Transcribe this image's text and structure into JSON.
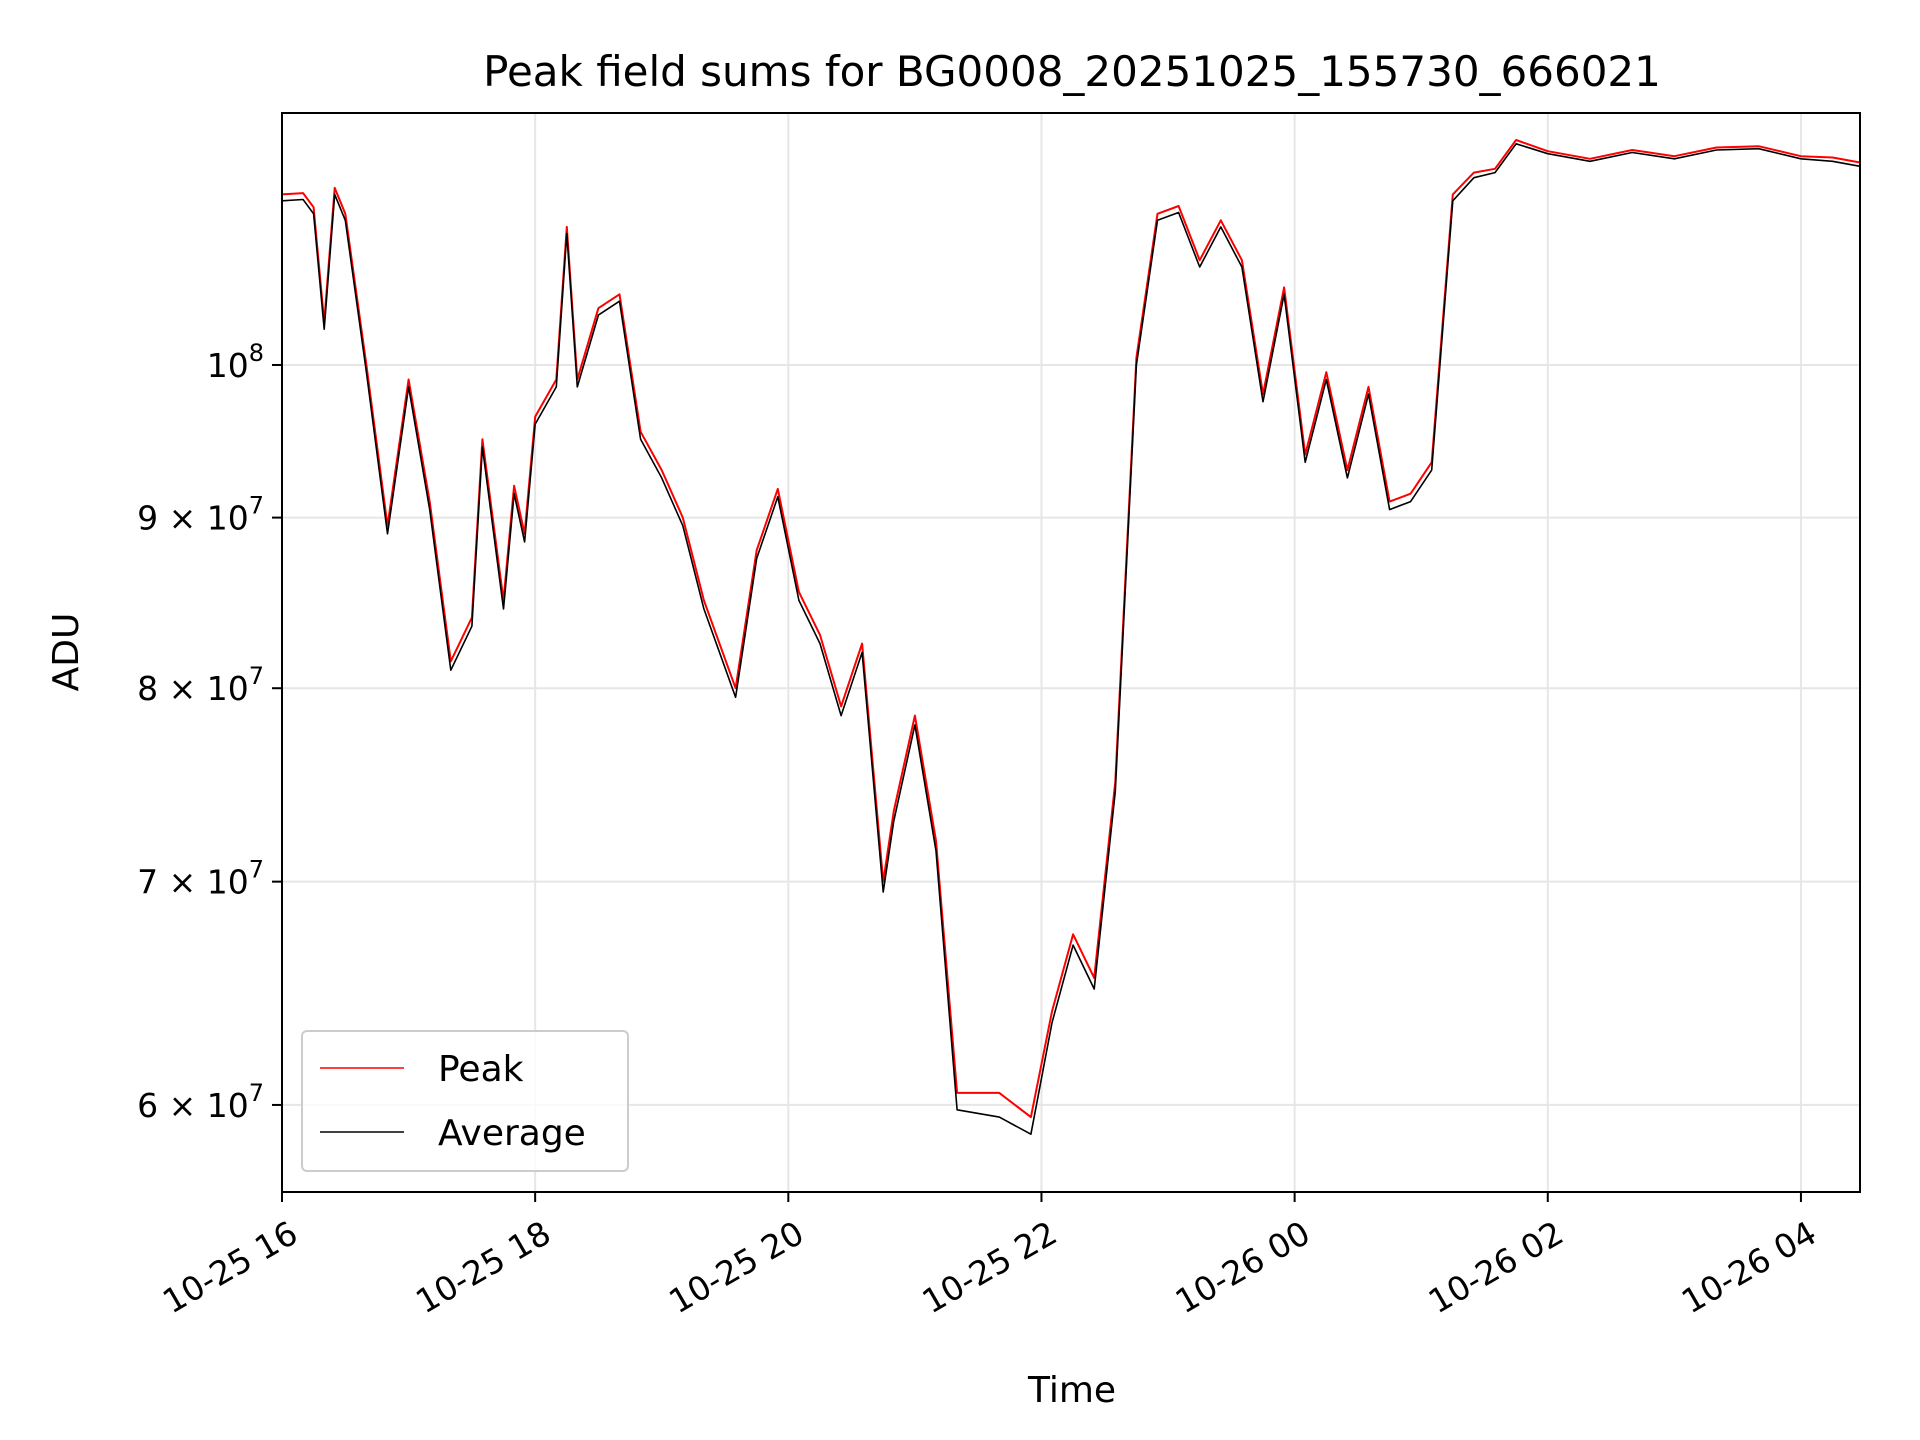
{
  "chart_data": {
    "type": "line",
    "title": "Peak field sums for BG0008_20251025_155730_666021",
    "xlabel": "Time",
    "ylabel": "ADU",
    "y_scale": "log",
    "grid": true,
    "legend_position": "lower-left",
    "xlim": [
      "2025-10-25 16:00",
      "2025-10-26 04:28"
    ],
    "ylim": [
      56500000,
      119000000
    ],
    "x_ticks": [
      {
        "value": "2025-10-25 16:00",
        "label": "10-25 16"
      },
      {
        "value": "2025-10-25 18:00",
        "label": "10-25 18"
      },
      {
        "value": "2025-10-25 20:00",
        "label": "10-25 20"
      },
      {
        "value": "2025-10-25 22:00",
        "label": "10-25 22"
      },
      {
        "value": "2025-10-26 00:00",
        "label": "10-26 00"
      },
      {
        "value": "2025-10-26 02:00",
        "label": "10-26 02"
      },
      {
        "value": "2025-10-26 04:00",
        "label": "10-26 04"
      }
    ],
    "y_ticks": [
      {
        "value": 100000000,
        "base": "10",
        "exp": "8"
      },
      {
        "value": 90000000,
        "base": "9 × 10",
        "exp": "7"
      },
      {
        "value": 80000000,
        "base": "8 × 10",
        "exp": "7"
      },
      {
        "value": 70000000,
        "base": "7 × 10",
        "exp": "7"
      },
      {
        "value": 60000000,
        "base": "6 × 10",
        "exp": "7"
      }
    ],
    "series": [
      {
        "name": "Peak",
        "color": "#ff0000",
        "x": [
          "2025-10-25 16:00",
          "2025-10-25 16:10",
          "2025-10-25 16:15",
          "2025-10-25 16:20",
          "2025-10-25 16:25",
          "2025-10-25 16:30",
          "2025-10-25 16:40",
          "2025-10-25 16:50",
          "2025-10-25 17:00",
          "2025-10-25 17:10",
          "2025-10-25 17:20",
          "2025-10-25 17:30",
          "2025-10-25 17:35",
          "2025-10-25 17:45",
          "2025-10-25 17:50",
          "2025-10-25 17:55",
          "2025-10-25 18:00",
          "2025-10-25 18:10",
          "2025-10-25 18:15",
          "2025-10-25 18:20",
          "2025-10-25 18:30",
          "2025-10-25 18:40",
          "2025-10-25 18:50",
          "2025-10-25 19:00",
          "2025-10-25 19:10",
          "2025-10-25 19:20",
          "2025-10-25 19:35",
          "2025-10-25 19:45",
          "2025-10-25 19:55",
          "2025-10-25 20:05",
          "2025-10-25 20:15",
          "2025-10-25 20:25",
          "2025-10-25 20:35",
          "2025-10-25 20:45",
          "2025-10-25 20:50",
          "2025-10-25 21:00",
          "2025-10-25 21:10",
          "2025-10-25 21:20",
          "2025-10-25 21:40",
          "2025-10-25 21:55",
          "2025-10-25 22:05",
          "2025-10-25 22:15",
          "2025-10-25 22:25",
          "2025-10-25 22:35",
          "2025-10-25 22:45",
          "2025-10-25 22:55",
          "2025-10-25 23:05",
          "2025-10-25 23:15",
          "2025-10-25 23:25",
          "2025-10-25 23:35",
          "2025-10-25 23:45",
          "2025-10-25 23:55",
          "2025-10-26 00:05",
          "2025-10-26 00:15",
          "2025-10-26 00:25",
          "2025-10-26 00:35",
          "2025-10-26 00:45",
          "2025-10-26 00:55",
          "2025-10-26 01:05",
          "2025-10-26 01:15",
          "2025-10-26 01:25",
          "2025-10-26 01:35",
          "2025-10-26 01:45",
          "2025-10-26 02:00",
          "2025-10-26 02:20",
          "2025-10-26 02:40",
          "2025-10-26 03:00",
          "2025-10-26 03:20",
          "2025-10-26 03:40",
          "2025-10-26 04:00",
          "2025-10-26 04:15",
          "2025-10-26 04:28"
        ],
        "values": [
          112500000,
          112600000,
          111500000,
          103000000,
          113000000,
          111000000,
          100000000,
          89500000,
          99000000,
          91000000,
          81500000,
          84000000,
          95000000,
          85000000,
          92000000,
          89000000,
          96500000,
          99000000,
          110000000,
          99000000,
          104000000,
          105000000,
          95500000,
          93000000,
          90000000,
          85000000,
          80000000,
          88000000,
          91800000,
          85500000,
          83000000,
          79000000,
          82500000,
          70000000,
          73500000,
          78500000,
          72000000,
          60500000,
          60500000,
          59500000,
          64000000,
          67500000,
          65500000,
          75000000,
          100500000,
          111000000,
          111600000,
          107500000,
          110500000,
          107500000,
          98000000,
          105500000,
          94000000,
          99500000,
          93000000,
          98500000,
          91000000,
          91500000,
          93500000,
          112500000,
          114200000,
          114500000,
          116800000,
          115900000,
          115300000,
          116000000,
          115500000,
          116200000,
          116300000,
          115500000,
          115400000,
          115000000
        ]
      },
      {
        "name": "Average",
        "color": "#000000",
        "x": [
          "2025-10-25 16:00",
          "2025-10-25 16:10",
          "2025-10-25 16:15",
          "2025-10-25 16:20",
          "2025-10-25 16:25",
          "2025-10-25 16:30",
          "2025-10-25 16:40",
          "2025-10-25 16:50",
          "2025-10-25 17:00",
          "2025-10-25 17:10",
          "2025-10-25 17:20",
          "2025-10-25 17:30",
          "2025-10-25 17:35",
          "2025-10-25 17:45",
          "2025-10-25 17:50",
          "2025-10-25 17:55",
          "2025-10-25 18:00",
          "2025-10-25 18:10",
          "2025-10-25 18:15",
          "2025-10-25 18:20",
          "2025-10-25 18:30",
          "2025-10-25 18:40",
          "2025-10-25 18:50",
          "2025-10-25 19:00",
          "2025-10-25 19:10",
          "2025-10-25 19:20",
          "2025-10-25 19:35",
          "2025-10-25 19:45",
          "2025-10-25 19:55",
          "2025-10-25 20:05",
          "2025-10-25 20:15",
          "2025-10-25 20:25",
          "2025-10-25 20:35",
          "2025-10-25 20:45",
          "2025-10-25 20:50",
          "2025-10-25 21:00",
          "2025-10-25 21:10",
          "2025-10-25 21:20",
          "2025-10-25 21:40",
          "2025-10-25 21:55",
          "2025-10-25 22:05",
          "2025-10-25 22:15",
          "2025-10-25 22:25",
          "2025-10-25 22:35",
          "2025-10-25 22:45",
          "2025-10-25 22:55",
          "2025-10-25 23:05",
          "2025-10-25 23:15",
          "2025-10-25 23:25",
          "2025-10-25 23:35",
          "2025-10-25 23:45",
          "2025-10-25 23:55",
          "2025-10-26 00:05",
          "2025-10-26 00:15",
          "2025-10-26 00:25",
          "2025-10-26 00:35",
          "2025-10-26 00:45",
          "2025-10-26 00:55",
          "2025-10-26 01:05",
          "2025-10-26 01:15",
          "2025-10-26 01:25",
          "2025-10-26 01:35",
          "2025-10-26 01:45",
          "2025-10-26 02:00",
          "2025-10-26 02:20",
          "2025-10-26 02:40",
          "2025-10-26 03:00",
          "2025-10-26 03:20",
          "2025-10-26 03:40",
          "2025-10-26 04:00",
          "2025-10-26 04:15",
          "2025-10-26 04:28"
        ],
        "values": [
          112000000,
          112100000,
          111000000,
          102500000,
          112500000,
          110500000,
          99500000,
          89000000,
          98500000,
          90500000,
          81000000,
          83500000,
          94500000,
          84500000,
          91500000,
          88500000,
          96000000,
          98500000,
          109500000,
          98500000,
          103500000,
          104500000,
          95000000,
          92500000,
          89500000,
          84500000,
          79500000,
          87500000,
          91300000,
          85000000,
          82500000,
          78500000,
          82000000,
          69500000,
          73000000,
          78000000,
          71500000,
          59800000,
          59500000,
          58800000,
          63500000,
          67000000,
          65000000,
          74500000,
          100000000,
          110500000,
          111100000,
          107000000,
          110000000,
          107000000,
          97500000,
          105000000,
          93500000,
          99000000,
          92500000,
          98000000,
          90500000,
          91000000,
          93000000,
          112000000,
          113800000,
          114200000,
          116500000,
          115700000,
          115100000,
          115800000,
          115300000,
          116000000,
          116100000,
          115300000,
          115100000,
          114700000
        ]
      }
    ]
  }
}
